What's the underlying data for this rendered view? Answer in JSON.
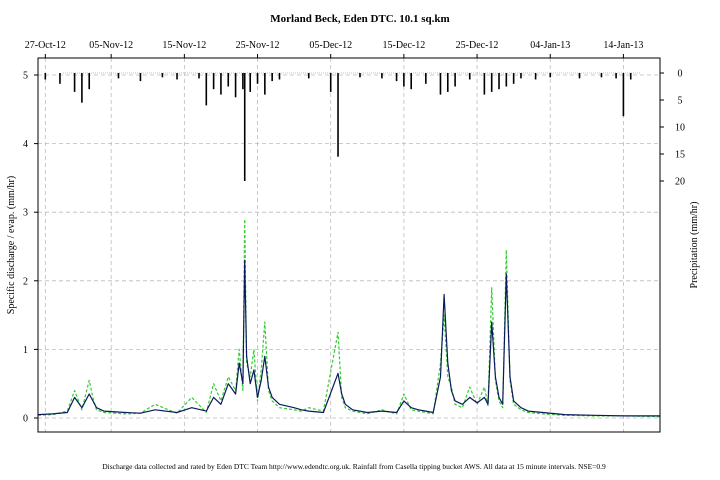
{
  "chart_data": {
    "type": "line",
    "title": "Morland Beck, Eden DTC. 10.1 sq.km",
    "ylabel": "Specific discharge / evap. (mm/hr)",
    "y2label": "Precipitation (mm/hr)",
    "footnote": "Discharge data collected and rated by Eden DTC Team http://www.edendtc.org.uk. Rainfall from Casella tipping bucket AWS. All data at 15 minute intervals. NSE=0.9",
    "x_start": "2012-10-26",
    "x_end": "2013-01-19",
    "x_tick_labels": [
      "27-Oct-12",
      "05-Nov-12",
      "15-Nov-12",
      "25-Nov-12",
      "05-Dec-12",
      "15-Dec-12",
      "25-Dec-12",
      "04-Jan-13",
      "14-Jan-13"
    ],
    "x_tick_dates": [
      "2012-10-27",
      "2012-11-05",
      "2012-11-15",
      "2012-11-25",
      "2012-12-05",
      "2012-12-15",
      "2012-12-25",
      "2013-01-04",
      "2013-01-14"
    ],
    "ylim": [
      0,
      5
    ],
    "y_ticks": [
      0,
      1,
      2,
      3,
      4,
      5
    ],
    "y2_ticks": [
      0,
      5,
      10,
      15,
      20
    ],
    "y2lim": [
      0,
      20
    ],
    "grid": true,
    "colors": {
      "observed": "#0a1a5c",
      "modelled": "#33cc33",
      "rain": "#000000",
      "grid": "#bbbbbb"
    },
    "series": [
      {
        "style": "solid",
        "x": [
          "2012-10-26",
          "2012-10-28",
          "2012-10-30",
          "2012-10-31",
          "2012-11-01",
          "2012-11-02",
          "2012-11-02T12:00",
          "2012-11-03",
          "2012-11-04",
          "2012-11-07",
          "2012-11-09",
          "2012-11-11",
          "2012-11-14",
          "2012-11-16",
          "2012-11-18",
          "2012-11-19",
          "2012-11-20",
          "2012-11-21",
          "2012-11-22",
          "2012-11-22T12:00",
          "2012-11-23",
          "2012-11-23T06:00",
          "2012-11-23T12:00",
          "2012-11-24",
          "2012-11-24T12:00",
          "2012-11-25",
          "2012-11-25T12:00",
          "2012-11-26",
          "2012-11-26T12:00",
          "2012-11-27",
          "2012-11-28",
          "2012-11-30",
          "2012-12-01",
          "2012-12-02",
          "2012-12-04",
          "2012-12-06",
          "2012-12-06T12:00",
          "2012-12-07",
          "2012-12-08",
          "2012-12-10",
          "2012-12-12",
          "2012-12-14",
          "2012-12-15",
          "2012-12-16",
          "2012-12-17",
          "2012-12-18",
          "2012-12-19",
          "2012-12-20",
          "2012-12-20T12:00",
          "2012-12-21",
          "2012-12-21T12:00",
          "2012-12-22",
          "2012-12-23",
          "2012-12-24",
          "2012-12-25",
          "2012-12-26",
          "2012-12-26T12:00",
          "2012-12-27",
          "2012-12-27T12:00",
          "2012-12-28",
          "2012-12-28T12:00",
          "2012-12-29",
          "2012-12-29T12:00",
          "2012-12-30",
          "2012-12-31",
          "2013-01-01",
          "2013-01-03",
          "2013-01-06",
          "2013-01-10",
          "2013-01-14",
          "2013-01-19"
        ],
        "values": [
          0.05,
          0.06,
          0.08,
          0.3,
          0.15,
          0.35,
          0.25,
          0.15,
          0.1,
          0.08,
          0.07,
          0.12,
          0.08,
          0.15,
          0.1,
          0.3,
          0.2,
          0.5,
          0.35,
          0.8,
          0.5,
          2.3,
          0.9,
          0.5,
          0.7,
          0.3,
          0.55,
          0.9,
          0.45,
          0.3,
          0.2,
          0.15,
          0.12,
          0.1,
          0.08,
          0.65,
          0.35,
          0.2,
          0.12,
          0.08,
          0.1,
          0.08,
          0.25,
          0.15,
          0.12,
          0.1,
          0.08,
          0.6,
          1.8,
          0.8,
          0.4,
          0.25,
          0.2,
          0.3,
          0.22,
          0.3,
          0.2,
          1.4,
          0.6,
          0.3,
          0.2,
          2.1,
          0.6,
          0.25,
          0.15,
          0.1,
          0.08,
          0.05,
          0.04,
          0.03,
          0.03
        ]
      },
      {
        "style": "dashed",
        "x": [
          "2012-10-26",
          "2012-10-28",
          "2012-10-30",
          "2012-10-31",
          "2012-11-01",
          "2012-11-02",
          "2012-11-02T12:00",
          "2012-11-03",
          "2012-11-04",
          "2012-11-07",
          "2012-11-09",
          "2012-11-11",
          "2012-11-14",
          "2012-11-16",
          "2012-11-18",
          "2012-11-19",
          "2012-11-20",
          "2012-11-21",
          "2012-11-22",
          "2012-11-22T12:00",
          "2012-11-23",
          "2012-11-23T06:00",
          "2012-11-23T12:00",
          "2012-11-24",
          "2012-11-24T12:00",
          "2012-11-25",
          "2012-11-25T12:00",
          "2012-11-26",
          "2012-11-26T12:00",
          "2012-11-27",
          "2012-11-28",
          "2012-11-30",
          "2012-12-01",
          "2012-12-02",
          "2012-12-04",
          "2012-12-06",
          "2012-12-06T12:00",
          "2012-12-07",
          "2012-12-08",
          "2012-12-10",
          "2012-12-12",
          "2012-12-14",
          "2012-12-15",
          "2012-12-16",
          "2012-12-17",
          "2012-12-18",
          "2012-12-19",
          "2012-12-20",
          "2012-12-20T12:00",
          "2012-12-21",
          "2012-12-21T12:00",
          "2012-12-22",
          "2012-12-23",
          "2012-12-24",
          "2012-12-25",
          "2012-12-26",
          "2012-12-26T12:00",
          "2012-12-27",
          "2012-12-27T12:00",
          "2012-12-28",
          "2012-12-28T12:00",
          "2012-12-29",
          "2012-12-29T12:00",
          "2012-12-30",
          "2012-12-31",
          "2013-01-01",
          "2013-01-03",
          "2013-01-06",
          "2013-01-10",
          "2013-01-14",
          "2013-01-19"
        ],
        "values": [
          0.04,
          0.05,
          0.1,
          0.4,
          0.12,
          0.55,
          0.3,
          0.12,
          0.08,
          0.06,
          0.07,
          0.2,
          0.07,
          0.3,
          0.08,
          0.5,
          0.25,
          0.6,
          0.4,
          1.0,
          0.4,
          2.9,
          0.8,
          0.6,
          1.0,
          0.25,
          0.7,
          1.4,
          0.4,
          0.25,
          0.15,
          0.12,
          0.1,
          0.15,
          0.1,
          1.25,
          0.3,
          0.15,
          0.1,
          0.06,
          0.12,
          0.06,
          0.35,
          0.12,
          0.1,
          0.08,
          0.06,
          0.8,
          1.5,
          0.6,
          0.45,
          0.2,
          0.15,
          0.45,
          0.2,
          0.45,
          0.18,
          1.9,
          0.55,
          0.25,
          0.15,
          2.45,
          0.55,
          0.2,
          0.12,
          0.08,
          0.06,
          0.04,
          0.03,
          0.03,
          0.02
        ]
      }
    ],
    "rain": {
      "x": [
        "2012-10-27",
        "2012-10-29",
        "2012-10-31",
        "2012-11-01",
        "2012-11-02",
        "2012-11-06",
        "2012-11-09",
        "2012-11-12",
        "2012-11-14",
        "2012-11-17",
        "2012-11-18",
        "2012-11-19",
        "2012-11-20",
        "2012-11-21",
        "2012-11-22",
        "2012-11-23",
        "2012-11-23T06:00",
        "2012-11-24",
        "2012-11-25",
        "2012-11-26",
        "2012-11-27",
        "2012-11-28",
        "2012-12-02",
        "2012-12-05",
        "2012-12-06",
        "2012-12-09",
        "2012-12-12",
        "2012-12-14",
        "2012-12-15",
        "2012-12-16",
        "2012-12-18",
        "2012-12-20",
        "2012-12-21",
        "2012-12-22",
        "2012-12-24",
        "2012-12-26",
        "2012-12-27",
        "2012-12-28",
        "2012-12-29",
        "2012-12-30",
        "2012-12-31",
        "2013-01-02",
        "2013-01-04",
        "2013-01-08",
        "2013-01-11",
        "2013-01-13",
        "2013-01-14",
        "2013-01-15"
      ],
      "values": [
        1.2,
        2.0,
        3.5,
        5.5,
        3.0,
        1.0,
        1.5,
        0.8,
        1.2,
        1.0,
        6.0,
        3.0,
        4.0,
        2.5,
        4.5,
        3.0,
        20.0,
        3.5,
        2.0,
        4.0,
        1.5,
        1.2,
        1.0,
        3.5,
        15.5,
        0.8,
        1.0,
        1.5,
        2.5,
        3.0,
        2.0,
        4.0,
        3.5,
        2.5,
        1.2,
        4.0,
        3.5,
        3.0,
        2.5,
        2.0,
        1.0,
        1.2,
        0.8,
        1.0,
        0.8,
        1.0,
        8.0,
        1.2
      ]
    }
  }
}
